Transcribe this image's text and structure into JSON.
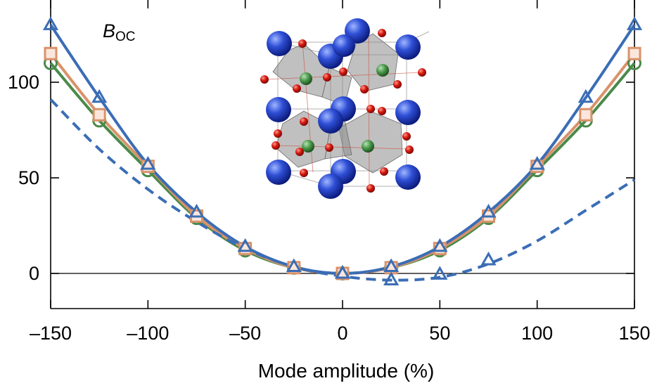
{
  "chart_data": {
    "type": "line",
    "title": "",
    "panel_label": {
      "main": "B",
      "sub": "OC"
    },
    "xlabel": "Mode amplitude (%)",
    "ylabel": "",
    "xlim": [
      -150,
      150
    ],
    "ylim": [
      -18,
      140
    ],
    "xticks": [
      -150,
      -100,
      -50,
      0,
      50,
      100,
      150
    ],
    "xtick_labels": [
      "–150",
      "–100",
      "–50",
      "0",
      "50",
      "100",
      "150"
    ],
    "yticks": [
      0,
      50,
      100
    ],
    "ytick_labels": [
      "0",
      "50",
      "100"
    ],
    "grid": false,
    "legend": "none",
    "x": [
      -150,
      -125,
      -100,
      -75,
      -50,
      -25,
      0,
      25,
      50,
      75,
      100,
      125,
      150
    ],
    "series": [
      {
        "color": "#4a8a4a",
        "marker": "circle",
        "line": "solid",
        "values": [
          110,
          80,
          54,
          29,
          12,
          3,
          0,
          3,
          12,
          29,
          54,
          80,
          110
        ]
      },
      {
        "color": "#d9926a",
        "marker": "square",
        "line": "solid",
        "values": [
          115,
          83,
          56,
          30,
          13,
          3,
          0,
          3,
          13,
          30,
          56,
          83,
          115
        ]
      },
      {
        "color": "#3a6db5",
        "marker": "triangle",
        "line": "solid",
        "values": [
          130,
          92,
          57,
          32,
          14,
          3.5,
          0,
          3.5,
          14,
          32,
          57,
          92,
          130
        ]
      },
      {
        "color": "#3a6db5",
        "marker": "triangle",
        "line": "dashed",
        "values": [
          null,
          null,
          null,
          null,
          null,
          null,
          0,
          -3.5,
          -0.5,
          7,
          null,
          null,
          null
        ],
        "fit": [
          91,
          65,
          44,
          27,
          13,
          3.5,
          -1.5,
          -3.5,
          -2,
          5,
          17,
          33,
          49
        ]
      }
    ],
    "horizontal_reference_line": 0,
    "inset": "crystal-structure-image"
  }
}
